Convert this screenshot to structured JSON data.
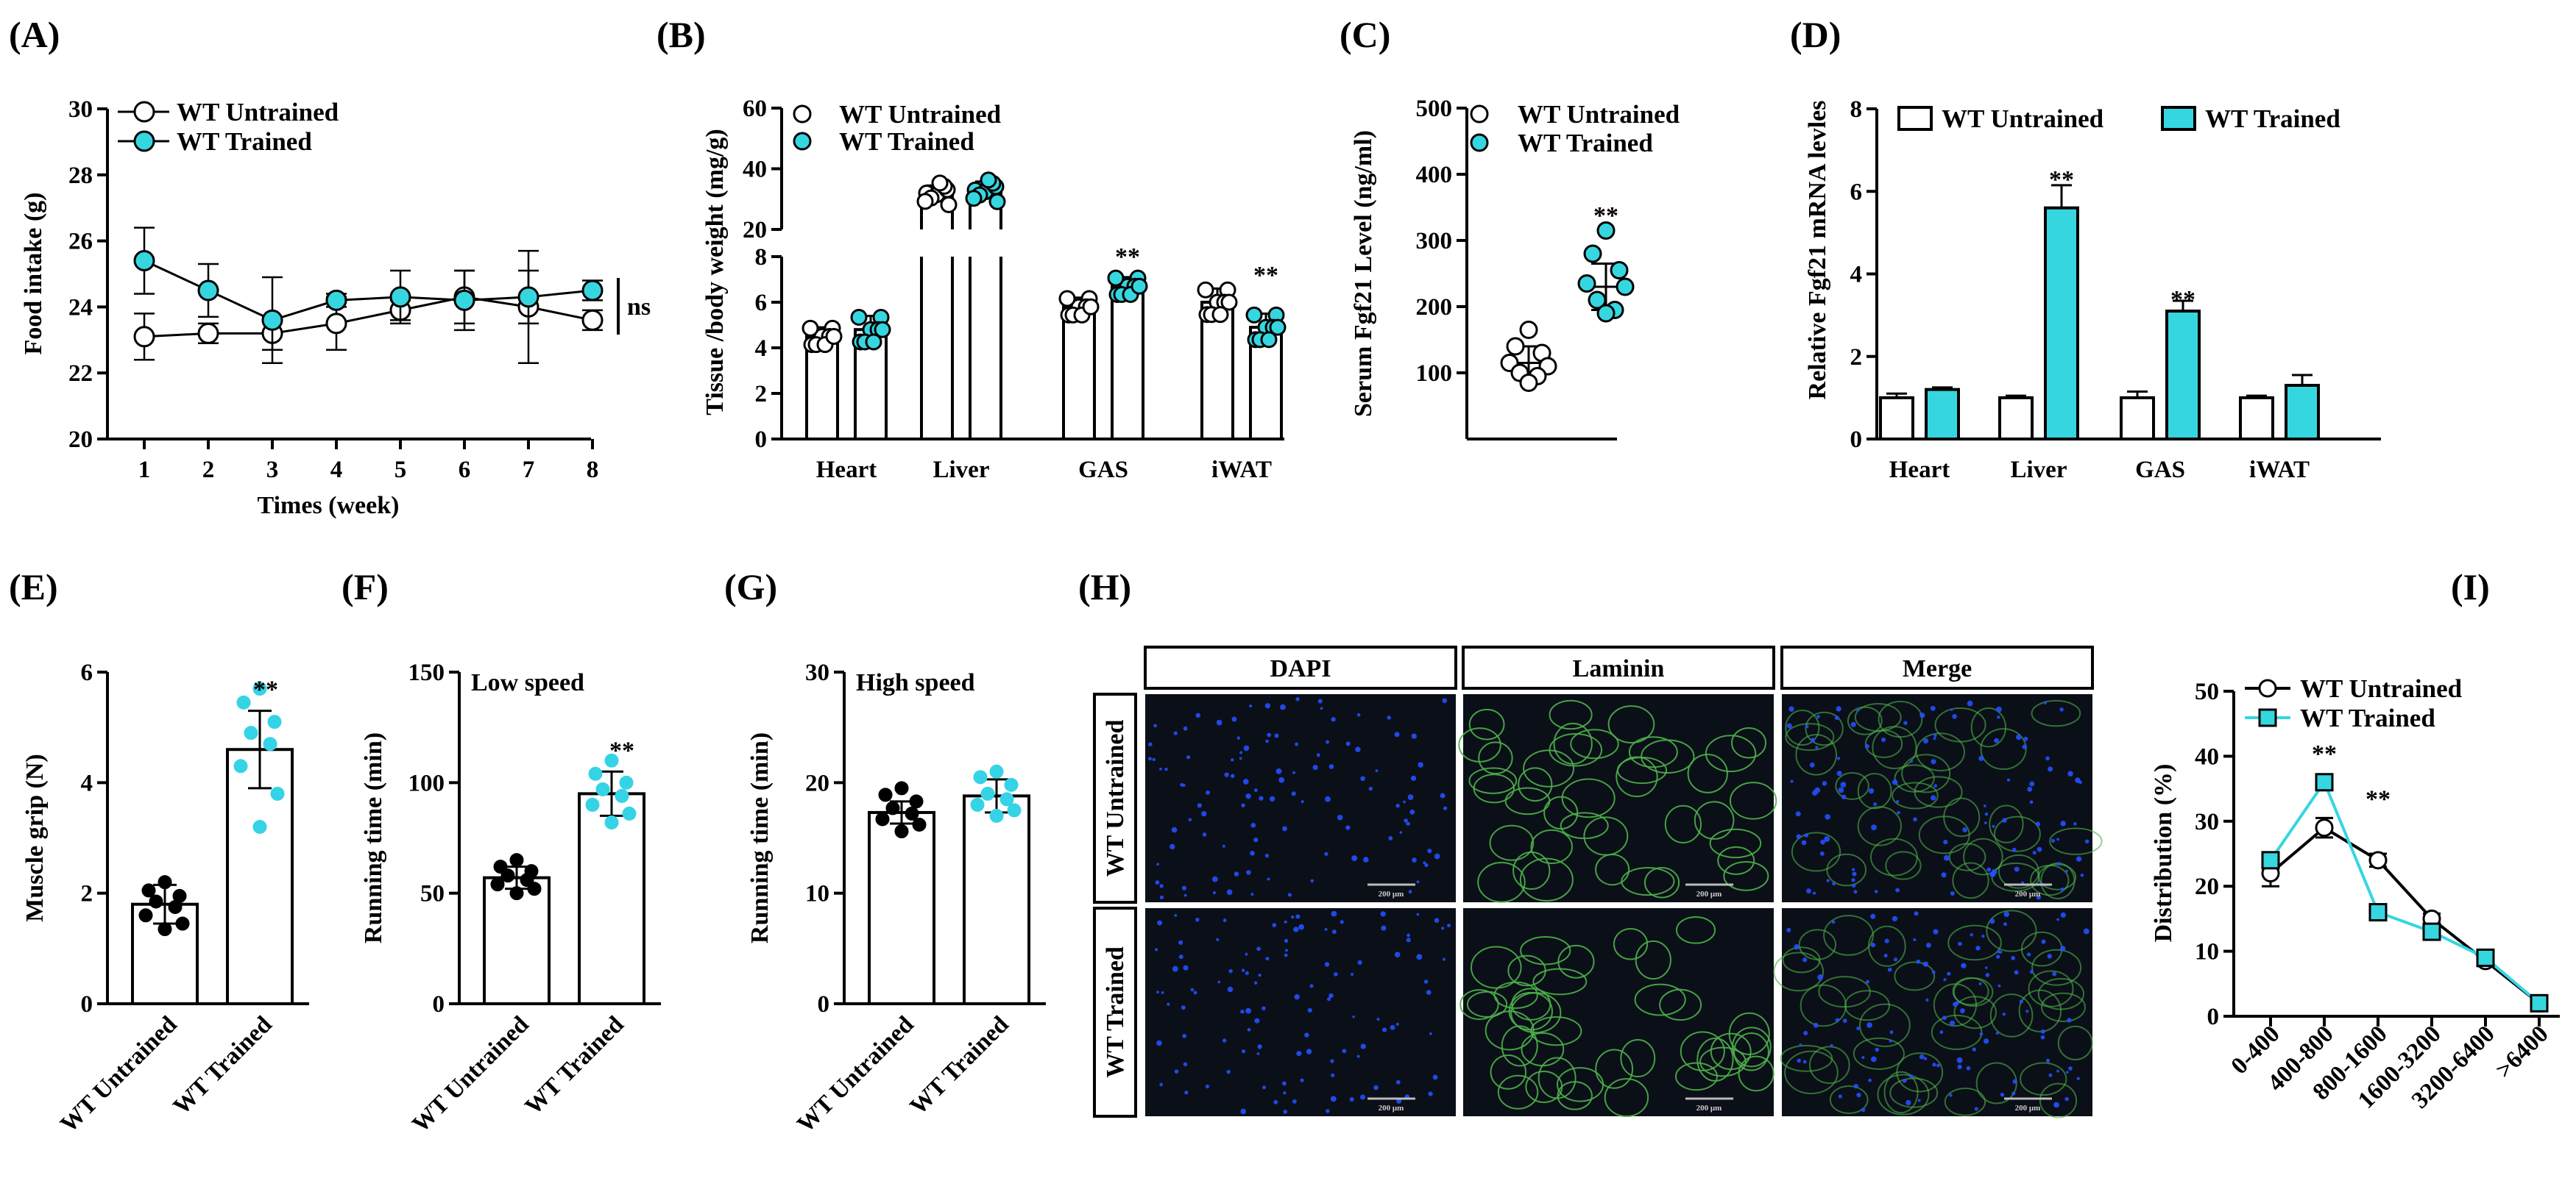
{
  "colors": {
    "untrained": "#ffffff",
    "trained": "#36d6e0",
    "trained_light": "#35d3e6",
    "outline": "#000000",
    "micro_bg": "#0b0f18",
    "dapi": "#2250ff",
    "laminin": "#4db04a"
  },
  "chart_data": [
    {
      "id": "A",
      "panel_label": "(A)",
      "type": "line",
      "x": [
        1,
        2,
        3,
        4,
        5,
        6,
        7,
        8
      ],
      "xticks": [
        "1",
        "2",
        "3",
        "4",
        "5",
        "6",
        "7",
        "8"
      ],
      "xlabel": "Times (week)",
      "ylabel": "Food intake (g)",
      "ylim": [
        20,
        30
      ],
      "yticks": [
        "20",
        "22",
        "24",
        "26",
        "28",
        "30"
      ],
      "series": [
        {
          "name": "WT Untrained",
          "values": [
            23.1,
            23.2,
            23.2,
            23.5,
            23.9,
            24.3,
            24.0,
            23.6
          ],
          "err": [
            0.7,
            0.3,
            0.5,
            0.8,
            0.3,
            0.8,
            1.7,
            0.3
          ]
        },
        {
          "name": "WT Trained",
          "values": [
            25.4,
            24.5,
            23.6,
            24.2,
            24.3,
            24.2,
            24.3,
            24.5
          ],
          "err": [
            1.0,
            0.8,
            1.3,
            0.2,
            0.8,
            0.9,
            0.8,
            0.3
          ]
        }
      ],
      "annotation": "ns"
    },
    {
      "id": "B",
      "panel_label": "(B)",
      "type": "bar",
      "categories": [
        "Heart",
        "Liver",
        "GAS",
        "iWAT"
      ],
      "ylabel": "Tissue /body weight (mg/g)",
      "lower_ylim": [
        0,
        8
      ],
      "lower_yticks": [
        "0",
        "2",
        "4",
        "6",
        "8"
      ],
      "upper_ylim": [
        20,
        60
      ],
      "upper_yticks": [
        "20",
        "40",
        "60"
      ],
      "series": [
        {
          "name": "WT Untrained",
          "values": [
            4.5,
            32,
            5.8,
            6.0
          ],
          "err": [
            0.4,
            2.5,
            0.4,
            0.6
          ]
        },
        {
          "name": "WT Trained",
          "values": [
            4.8,
            33,
            6.7,
            4.9
          ],
          "err": [
            0.6,
            2.8,
            0.4,
            0.6
          ]
        }
      ],
      "annotations": [
        "**",
        "**"
      ]
    },
    {
      "id": "C",
      "panel_label": "(C)",
      "type": "scatter",
      "ylabel": "Serum Fgf21 Level (ng/ml)",
      "ylim": [
        0,
        500
      ],
      "yticks": [
        "100",
        "200",
        "300",
        "400",
        "500"
      ],
      "series": [
        {
          "name": "WT Untrained",
          "mean": 115,
          "sd": 25,
          "points": [
            165,
            140,
            130,
            115,
            110,
            100,
            95,
            85
          ]
        },
        {
          "name": "WT Trained",
          "mean": 230,
          "sd": 35,
          "points": [
            315,
            280,
            255,
            235,
            230,
            210,
            195,
            190
          ]
        }
      ],
      "annotation": "**"
    },
    {
      "id": "D",
      "panel_label": "(D)",
      "type": "bar",
      "categories": [
        "Heart",
        "Liver",
        "GAS",
        "iWAT"
      ],
      "ylabel": "Relative Fgf21 mRNA levles",
      "ylim": [
        0,
        8
      ],
      "yticks": [
        "0",
        "2",
        "4",
        "6",
        "8"
      ],
      "series": [
        {
          "name": "WT Untrained",
          "values": [
            1.0,
            1.0,
            1.0,
            1.0
          ],
          "err": [
            0.1,
            0.05,
            0.15,
            0.05
          ]
        },
        {
          "name": "WT Trained",
          "values": [
            1.2,
            5.6,
            3.1,
            1.3
          ],
          "err": [
            0.05,
            0.55,
            0.25,
            0.25
          ]
        }
      ],
      "annotations": [
        "**",
        "**"
      ]
    },
    {
      "id": "E",
      "panel_label": "(E)",
      "type": "bar",
      "categories": [
        "WT Untrained",
        "WT Trained"
      ],
      "ylabel": "Muscle grip (N)",
      "ylim": [
        0,
        6
      ],
      "yticks": [
        "0",
        "2",
        "4",
        "6"
      ],
      "values": [
        1.8,
        4.6
      ],
      "err": [
        0.35,
        0.7
      ],
      "points": [
        [
          2.2,
          2.05,
          1.95,
          1.85,
          1.75,
          1.6,
          1.45,
          1.35
        ],
        [
          5.7,
          5.45,
          5.1,
          4.9,
          4.7,
          4.3,
          3.8,
          3.2
        ]
      ],
      "annotation": "**"
    },
    {
      "id": "F",
      "panel_label": "(F)",
      "type": "bar",
      "title": "Low speed",
      "categories": [
        "WT Untrained",
        "WT Trained"
      ],
      "ylabel": "Running time (min)",
      "ylim": [
        0,
        150
      ],
      "yticks": [
        "0",
        "50",
        "100",
        "150"
      ],
      "values": [
        57,
        95
      ],
      "err": [
        5,
        10
      ],
      "points": [
        [
          65,
          62,
          60,
          58,
          56,
          54,
          52,
          50
        ],
        [
          110,
          104,
          100,
          97,
          94,
          90,
          86,
          82
        ]
      ],
      "annotation": "**"
    },
    {
      "id": "G",
      "panel_label": "(G)",
      "type": "bar",
      "title": "High speed",
      "categories": [
        "WT Untrained",
        "WT Trained"
      ],
      "ylabel": "Running time (min)",
      "ylim": [
        0,
        30
      ],
      "yticks": [
        "0",
        "10",
        "20",
        "30"
      ],
      "values": [
        17.3,
        18.8
      ],
      "err": [
        1.0,
        1.5
      ],
      "points": [
        [
          19.5,
          18.9,
          18.3,
          17.7,
          17.2,
          16.7,
          16.2,
          15.6
        ],
        [
          21.0,
          20.5,
          19.8,
          19.0,
          18.5,
          18.0,
          17.5,
          17.0
        ]
      ]
    },
    {
      "id": "I",
      "panel_label": "(I)",
      "type": "line",
      "categories": [
        "0-400",
        "400-800",
        "800-1600",
        "1600-3200",
        "3200-6400",
        ">6400"
      ],
      "ylabel": "Distribution (%)",
      "ylim": [
        0,
        50
      ],
      "yticks": [
        "0",
        "10",
        "20",
        "30",
        "40",
        "50"
      ],
      "series": [
        {
          "name": "WT Untrained",
          "values": [
            22,
            29,
            24,
            15,
            8.5,
            2
          ],
          "err": [
            2,
            1.5,
            1,
            0.8,
            0.8,
            0.5
          ]
        },
        {
          "name": "WT Trained",
          "values": [
            24,
            36,
            16,
            13,
            9,
            2
          ],
          "err": [
            1.2,
            1.2,
            1.2,
            0.8,
            0.6,
            0.3
          ]
        }
      ],
      "annotations": [
        "**",
        "**"
      ]
    }
  ],
  "micrograph": {
    "panel_label": "(H)",
    "columns": [
      "DAPI",
      "Laminin",
      "Merge"
    ],
    "rows": [
      "WT Untrained",
      "WT Trained"
    ],
    "scale_label": "200 μm"
  }
}
